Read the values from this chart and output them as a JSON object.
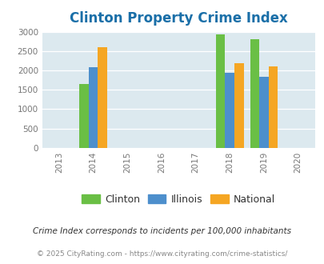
{
  "title": "Clinton Property Crime Index",
  "years": [
    2013,
    2014,
    2015,
    2016,
    2017,
    2018,
    2019,
    2020
  ],
  "data": {
    "2014": {
      "clinton": 1650,
      "illinois": 2090,
      "national": 2600
    },
    "2018": {
      "clinton": 2930,
      "illinois": 1940,
      "national": 2190
    },
    "2019": {
      "clinton": 2810,
      "illinois": 1845,
      "national": 2095
    }
  },
  "colors": {
    "clinton": "#6abf45",
    "illinois": "#4d8fcc",
    "national": "#f5a623"
  },
  "ylim": [
    0,
    3000
  ],
  "yticks": [
    0,
    500,
    1000,
    1500,
    2000,
    2500,
    3000
  ],
  "xlim": [
    2012.5,
    2020.5
  ],
  "bg_color": "#dce9ef",
  "legend_labels": [
    "Clinton",
    "Illinois",
    "National"
  ],
  "footnote1": "Crime Index corresponds to incidents per 100,000 inhabitants",
  "footnote2": "© 2025 CityRating.com - https://www.cityrating.com/crime-statistics/",
  "bar_width": 0.27,
  "title_color": "#1a6fa8",
  "title_fontsize": 12,
  "tick_color": "#777777",
  "footnote1_color": "#333333",
  "footnote2_color": "#888888"
}
